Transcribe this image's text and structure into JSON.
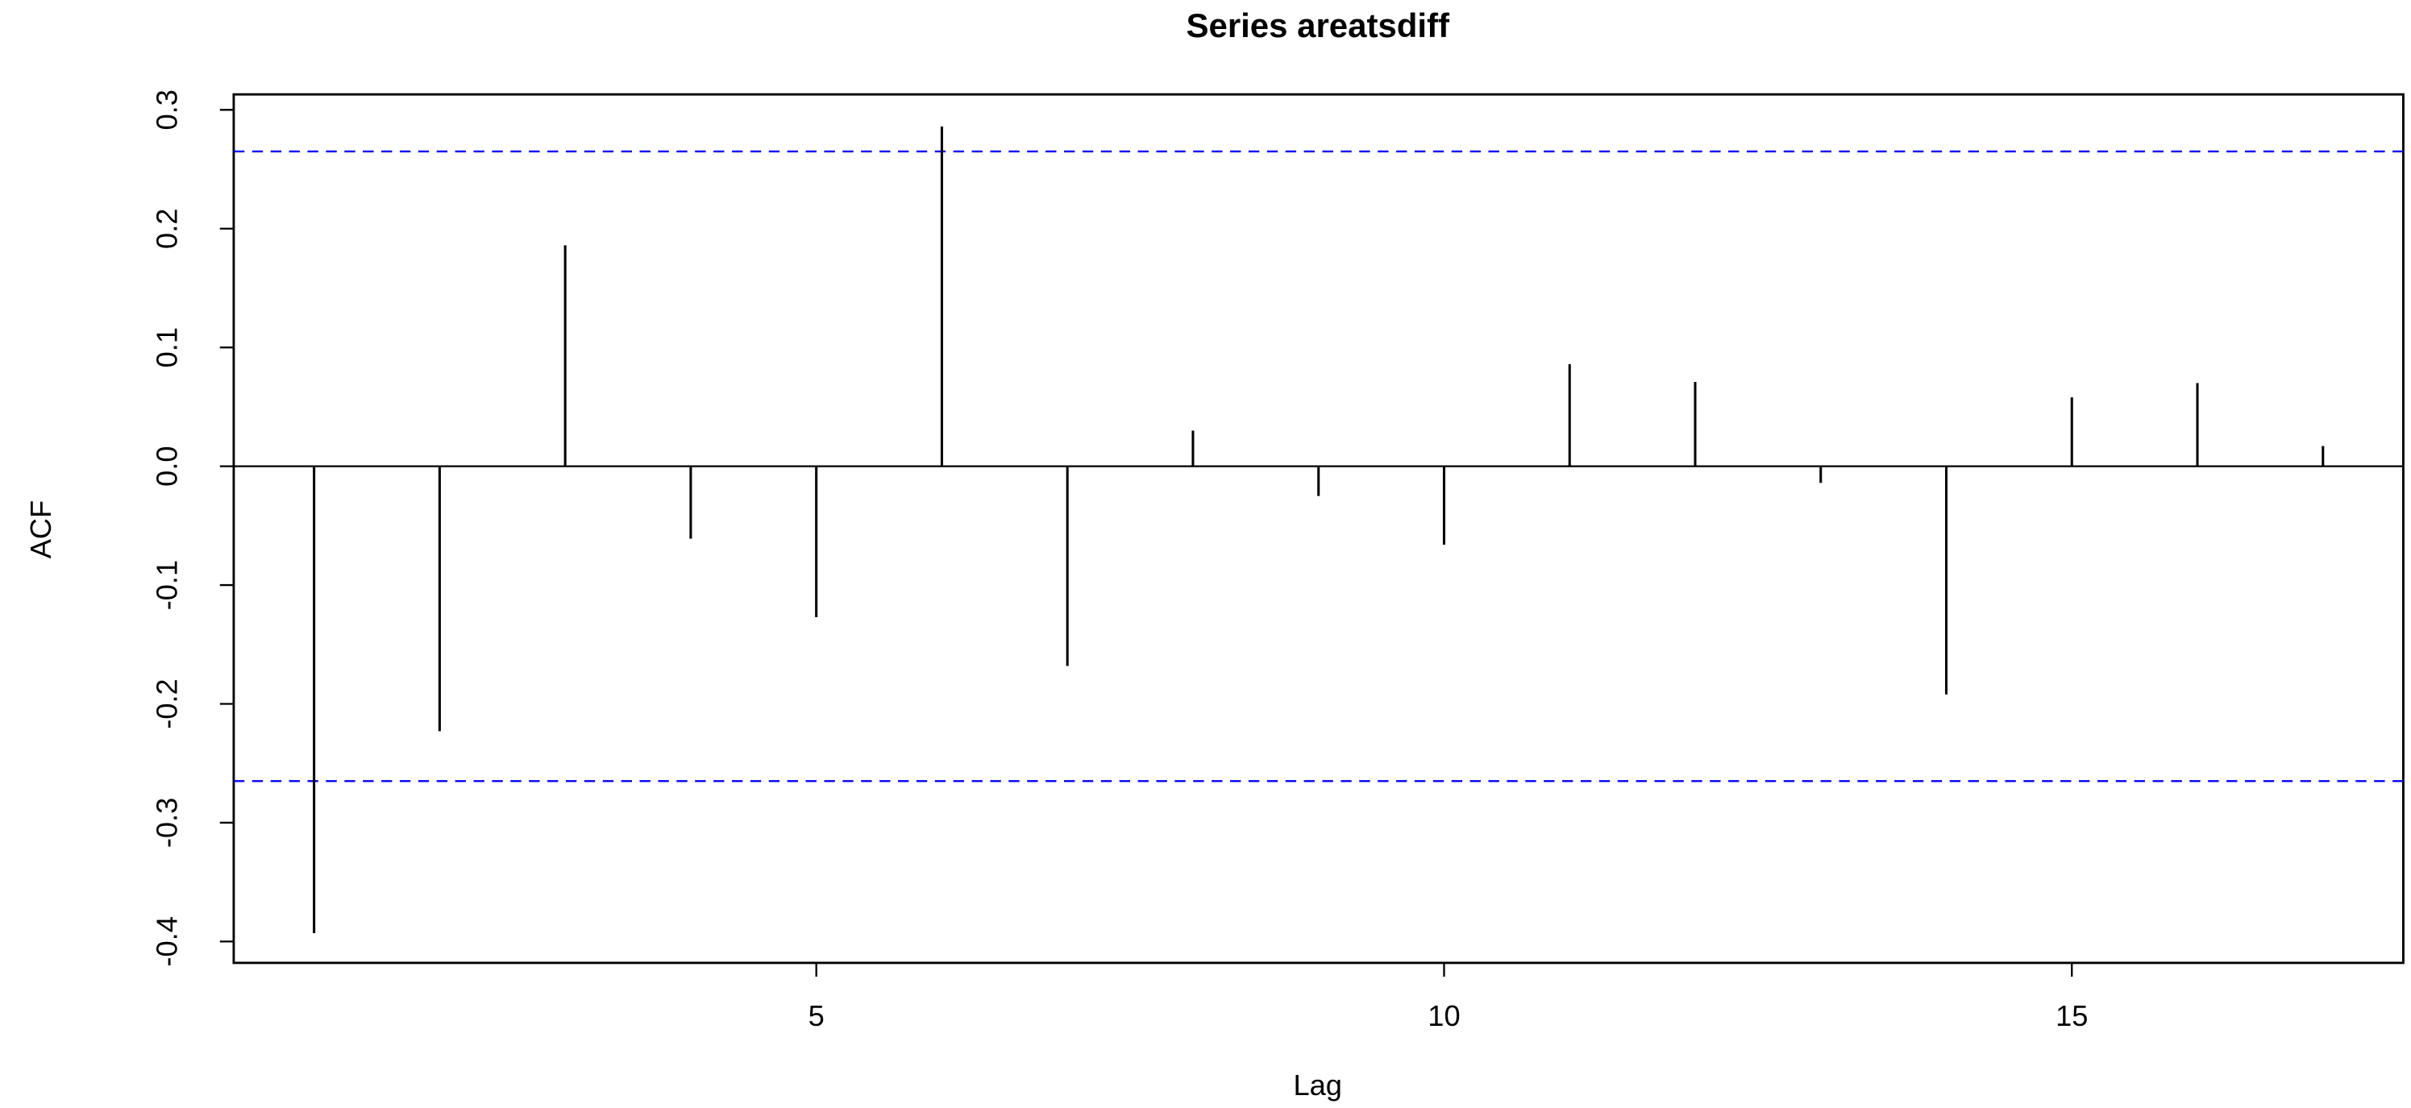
{
  "chart_data": {
    "type": "stem",
    "title": "Series areatsdiff",
    "x_label": "Lag",
    "y_label": "ACF",
    "x": [
      1,
      2,
      3,
      4,
      5,
      6,
      7,
      8,
      9,
      10,
      11,
      12,
      13,
      14,
      15,
      16,
      17
    ],
    "values": [
      -0.393,
      -0.223,
      0.186,
      -0.061,
      -0.127,
      0.286,
      -0.168,
      0.03,
      -0.025,
      -0.066,
      0.086,
      0.071,
      -0.014,
      -0.192,
      0.058,
      0.07,
      0.017
    ],
    "color": "#000000",
    "ci": [
      0.265,
      -0.265
    ],
    "ci_color": "#0000ff",
    "xlim": [
      0.36,
      17.64
    ],
    "ylim": [
      -0.418,
      0.313
    ],
    "xticks": [
      5,
      10,
      15
    ],
    "yticks": [
      -0.4,
      -0.3,
      -0.2,
      -0.1,
      {
        "value": 0,
        "label": "0.0"
      },
      0.1,
      0.2,
      0.3
    ]
  }
}
